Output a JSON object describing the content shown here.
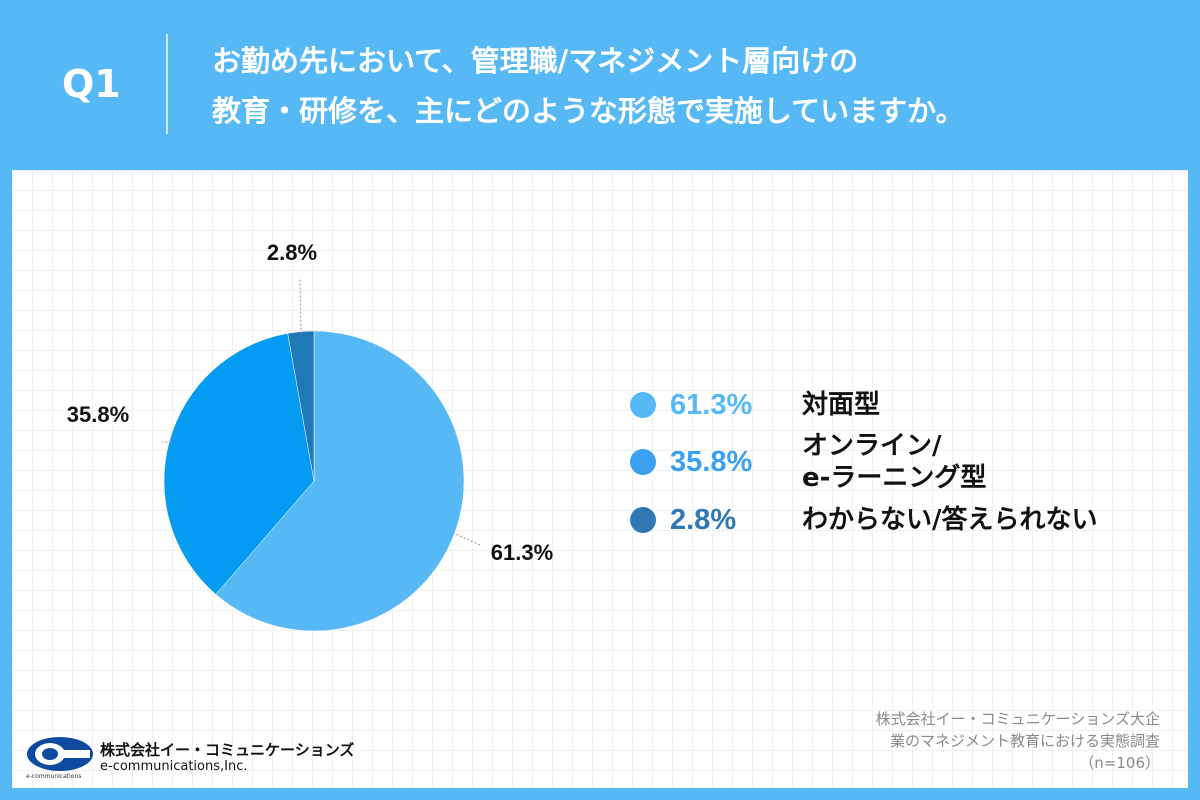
{
  "header": {
    "question_label": "Q1",
    "title_line1": "お勤め先において、管理職/マネジメント層向けの",
    "title_line2": "教育・研修を、主にどのような形態で実施していますか。"
  },
  "chart_data": {
    "type": "pie",
    "title": "",
    "slices": [
      {
        "label": "対面型",
        "value": 61.3,
        "value_label": "61.3%",
        "color": "#56b9f6"
      },
      {
        "label": "オンライン/e-ラーニング型",
        "value": 35.8,
        "value_label": "35.8%",
        "color": "#049cf2"
      },
      {
        "label": "わからない/答えられない",
        "value": 2.8,
        "value_label": "2.8%",
        "color": "#1f78b8"
      }
    ],
    "start_angle": "12 o'clock",
    "direction": "clockwise",
    "legend_position": "right"
  },
  "legend": [
    {
      "pct": "61.3%",
      "label_lines": [
        "対面型"
      ],
      "pct_color": "#56b9f6",
      "dot_color": "#56b9f6"
    },
    {
      "pct": "35.8%",
      "label_lines": [
        "オンライン/",
        "e-ラーニング型"
      ],
      "pct_color": "#3aa0ef",
      "dot_color": "#3aa0ef"
    },
    {
      "pct": "2.8%",
      "label_lines": [
        "わからない/答えられない"
      ],
      "pct_color": "#2f78b4",
      "dot_color": "#2f78b4"
    }
  ],
  "source": {
    "line1": "株式会社イー・コミュニケーションズ大企",
    "line2": "業のマネジメント教育における実態調査",
    "line3": "（n=106）"
  },
  "logo": {
    "company_jp": "株式会社イー・コミュニケーションズ",
    "company_en": "e-communications,Inc.",
    "tiny_text": "e-communications"
  },
  "colors": {
    "background": "#56b9f6",
    "panel": "#ffffff"
  }
}
